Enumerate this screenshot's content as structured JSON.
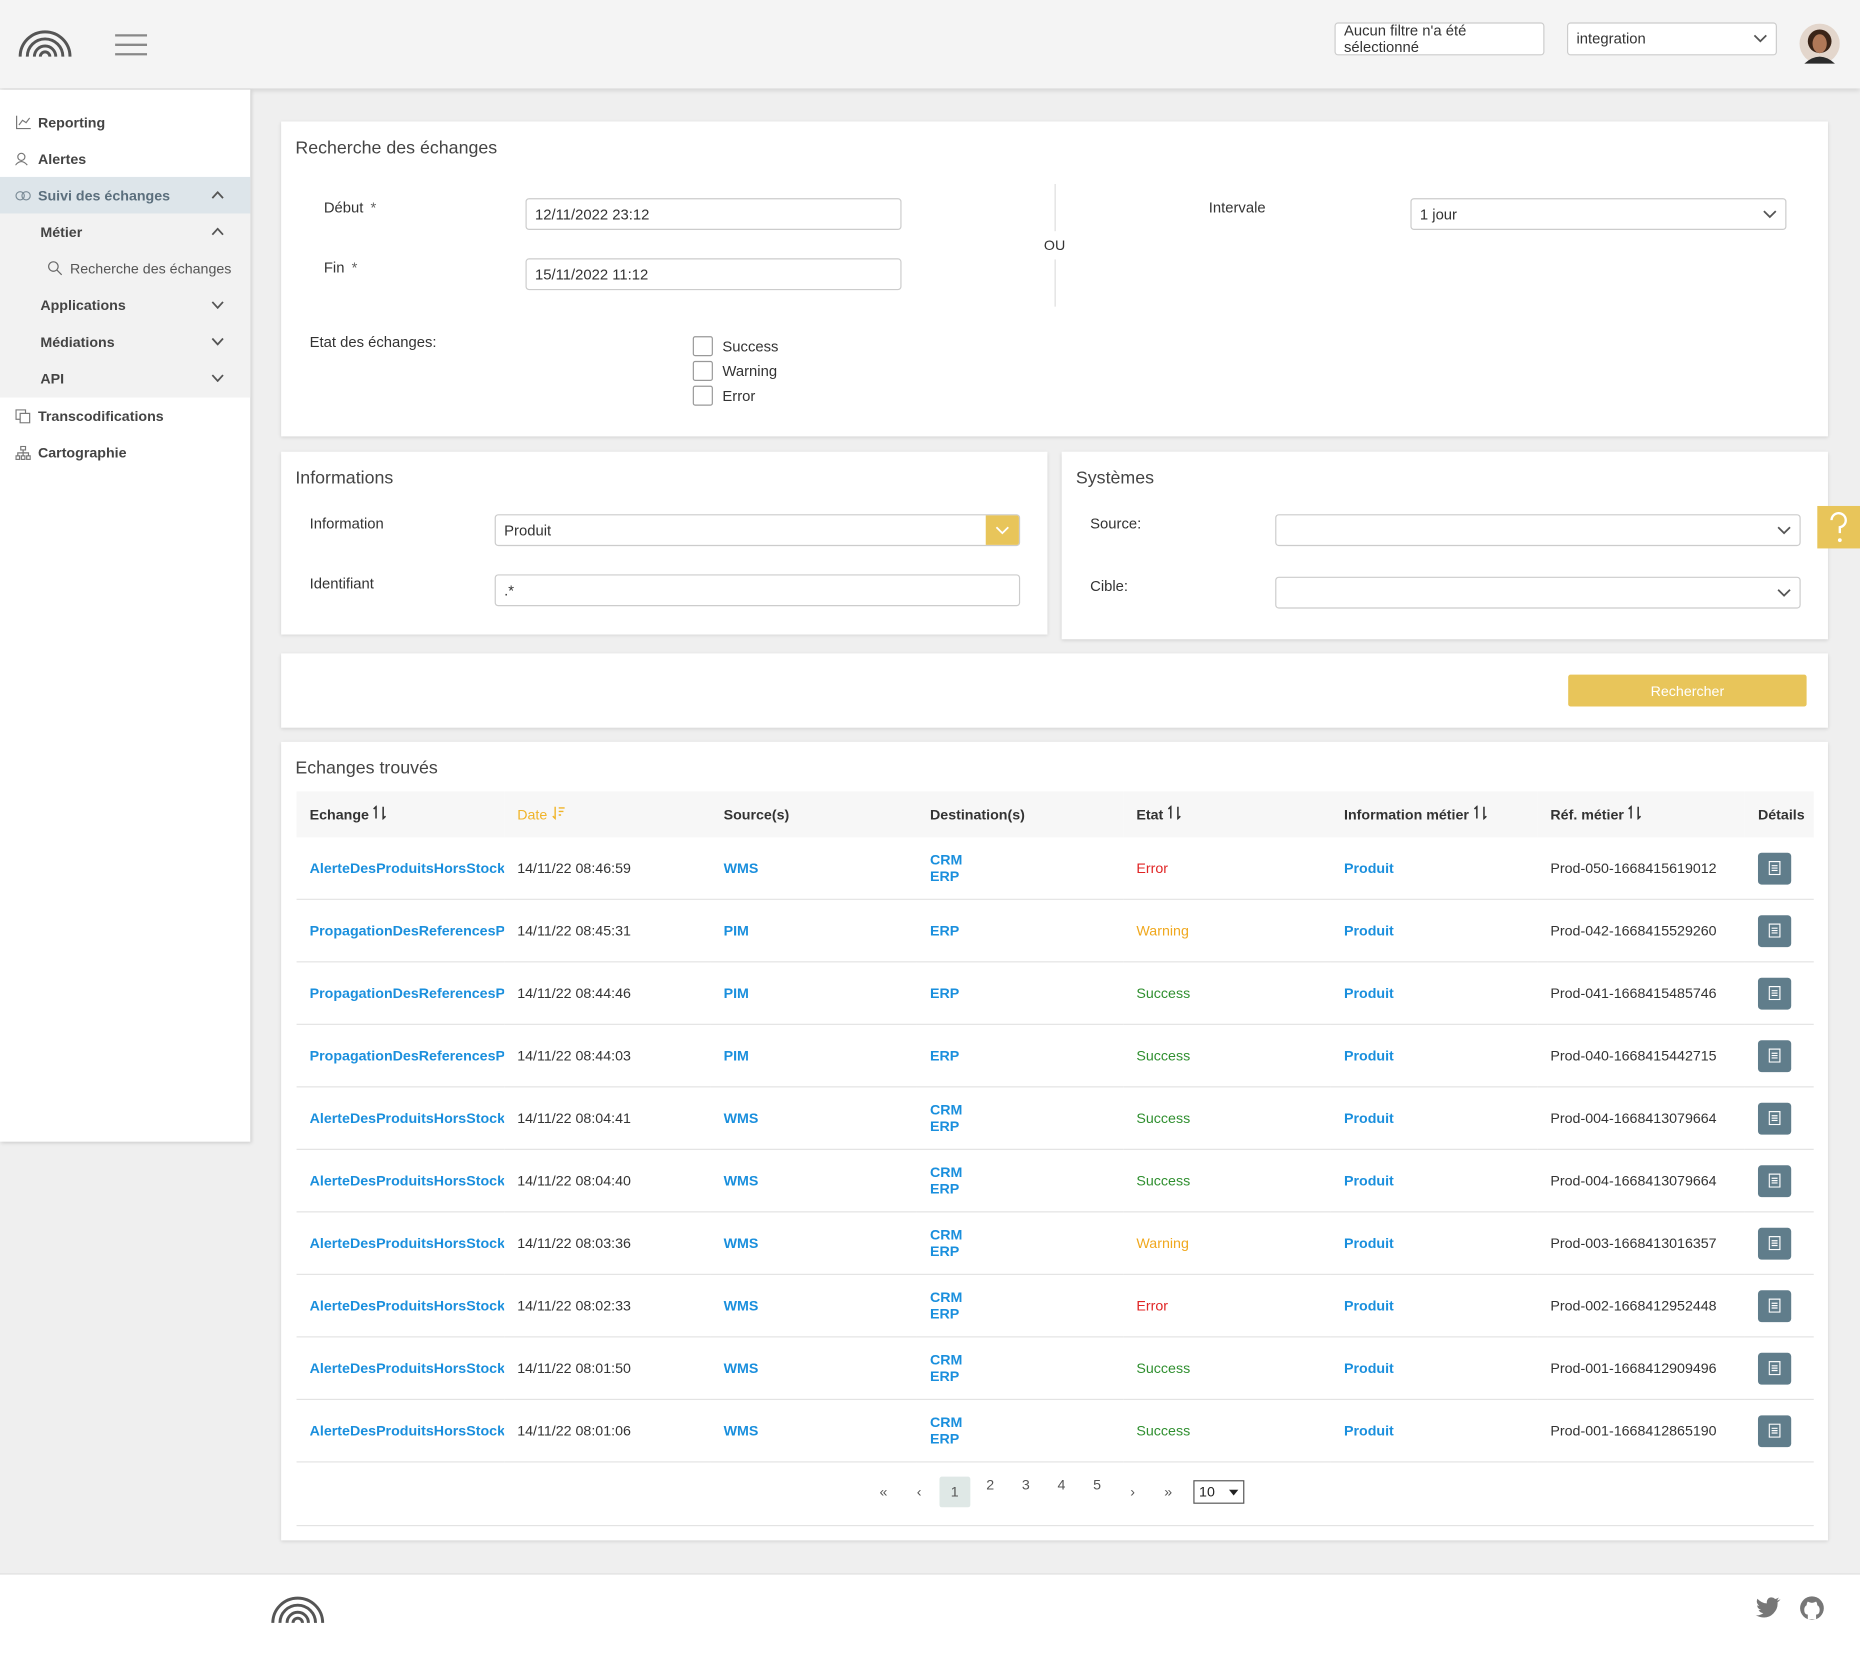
{
  "header": {
    "filter": "Aucun filtre n'a été sélectionné",
    "environment": "integration"
  },
  "sidebar": {
    "items": [
      "Reporting",
      "Alertes",
      "Suivi des échanges",
      "Métier",
      "Recherche des échanges",
      "Applications",
      "Médiations",
      "API",
      "Transcodifications",
      "Cartographie"
    ]
  },
  "search": {
    "title": "Recherche des échanges",
    "start_label": "Début",
    "start_value": "12/11/2022 23:12",
    "end_label": "Fin",
    "end_value": "15/11/2022 11:12",
    "required": "*",
    "or": "OU",
    "interval_label": "Intervale",
    "interval_value": "1 jour",
    "state_label": "Etat des échanges:",
    "states": [
      "Success",
      "Warning",
      "Error"
    ]
  },
  "informations": {
    "title": "Informations",
    "information_label": "Information",
    "information_value": "Produit",
    "identifier_label": "Identifiant",
    "identifier_value": ".*"
  },
  "systems": {
    "title": "Systèmes",
    "source_label": "Source:",
    "target_label": "Cible:"
  },
  "search_button": "Rechercher",
  "results": {
    "title": "Echanges trouvés",
    "columns": [
      "Echange",
      "Date",
      "Source(s)",
      "Destination(s)",
      "Etat",
      "Information métier",
      "Réf. métier",
      "Détails"
    ],
    "state_colors": {
      "Success": "#2f8f2f",
      "Warning": "#f0a81e",
      "Error": "#e02424"
    },
    "rows": [
      [
        "AlerteDesProduitsHorsStock",
        "14/11/22 08:46:59",
        "WMS",
        [
          "CRM",
          "ERP"
        ],
        "Error",
        "Produit",
        "Prod-050-1668415619012"
      ],
      [
        "PropagationDesReferencesPro",
        "14/11/22 08:45:31",
        "PIM",
        [
          "ERP"
        ],
        "Warning",
        "Produit",
        "Prod-042-1668415529260"
      ],
      [
        "PropagationDesReferencesPro",
        "14/11/22 08:44:46",
        "PIM",
        [
          "ERP"
        ],
        "Success",
        "Produit",
        "Prod-041-1668415485746"
      ],
      [
        "PropagationDesReferencesPro",
        "14/11/22 08:44:03",
        "PIM",
        [
          "ERP"
        ],
        "Success",
        "Produit",
        "Prod-040-1668415442715"
      ],
      [
        "AlerteDesProduitsHorsStock",
        "14/11/22 08:04:41",
        "WMS",
        [
          "CRM",
          "ERP"
        ],
        "Success",
        "Produit",
        "Prod-004-1668413079664"
      ],
      [
        "AlerteDesProduitsHorsStock",
        "14/11/22 08:04:40",
        "WMS",
        [
          "CRM",
          "ERP"
        ],
        "Success",
        "Produit",
        "Prod-004-1668413079664"
      ],
      [
        "AlerteDesProduitsHorsStock",
        "14/11/22 08:03:36",
        "WMS",
        [
          "CRM",
          "ERP"
        ],
        "Warning",
        "Produit",
        "Prod-003-1668413016357"
      ],
      [
        "AlerteDesProduitsHorsStock",
        "14/11/22 08:02:33",
        "WMS",
        [
          "CRM",
          "ERP"
        ],
        "Error",
        "Produit",
        "Prod-002-1668412952448"
      ],
      [
        "AlerteDesProduitsHorsStock",
        "14/11/22 08:01:50",
        "WMS",
        [
          "CRM",
          "ERP"
        ],
        "Success",
        "Produit",
        "Prod-001-1668412909496"
      ],
      [
        "AlerteDesProduitsHorsStock",
        "14/11/22 08:01:06",
        "WMS",
        [
          "CRM",
          "ERP"
        ],
        "Success",
        "Produit",
        "Prod-001-1668412865190"
      ]
    ]
  },
  "pagination": {
    "pages": [
      1,
      2,
      3,
      4,
      5
    ],
    "current_page": 1,
    "page_size": 10
  }
}
